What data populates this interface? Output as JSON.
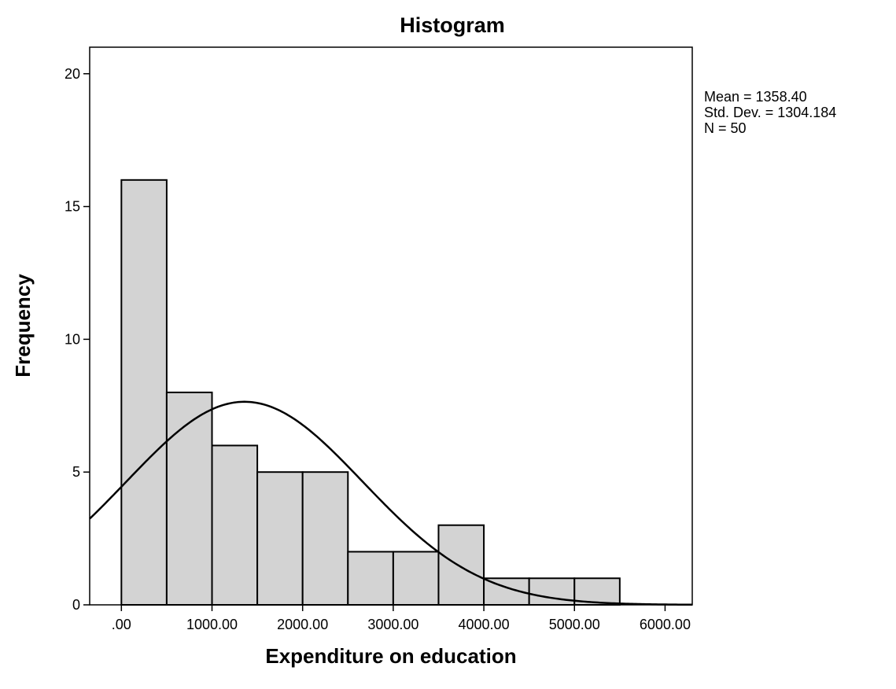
{
  "chart_data": {
    "type": "histogram",
    "title": "Histogram",
    "xlabel": "Expenditure on education",
    "ylabel": "Frequency",
    "xlim": [
      -350,
      6300
    ],
    "ylim": [
      0,
      21
    ],
    "grid": false,
    "bin_width": 500,
    "bins": [
      {
        "start": 0,
        "end": 500,
        "count": 16
      },
      {
        "start": 500,
        "end": 1000,
        "count": 8
      },
      {
        "start": 1000,
        "end": 1500,
        "count": 6
      },
      {
        "start": 1500,
        "end": 2000,
        "count": 5
      },
      {
        "start": 2000,
        "end": 2500,
        "count": 5
      },
      {
        "start": 2500,
        "end": 3000,
        "count": 2
      },
      {
        "start": 3000,
        "end": 3500,
        "count": 2
      },
      {
        "start": 3500,
        "end": 4000,
        "count": 3
      },
      {
        "start": 4000,
        "end": 4500,
        "count": 1
      },
      {
        "start": 4500,
        "end": 5000,
        "count": 1
      },
      {
        "start": 5000,
        "end": 5500,
        "count": 1
      }
    ],
    "x_ticks": [
      0,
      1000,
      2000,
      3000,
      4000,
      5000,
      6000
    ],
    "x_tick_labels": [
      ".00",
      "1000.00",
      "2000.00",
      "3000.00",
      "4000.00",
      "5000.00",
      "6000.00"
    ],
    "y_ticks": [
      0,
      5,
      10,
      15,
      20
    ],
    "y_tick_labels": [
      "0",
      "5",
      "10",
      "15",
      "20"
    ],
    "normal_curve": {
      "mean": 1358.4,
      "sd": 1304.184,
      "n": 50
    },
    "stats": {
      "mean_label": "Mean = 1358.40",
      "std_label": "Std. Dev. = 1304.184",
      "n_label": "N = 50"
    },
    "colors": {
      "bar_fill": "#d3d3d3",
      "bar_stroke": "#000000",
      "curve": "#000000",
      "frame": "#000000"
    }
  }
}
